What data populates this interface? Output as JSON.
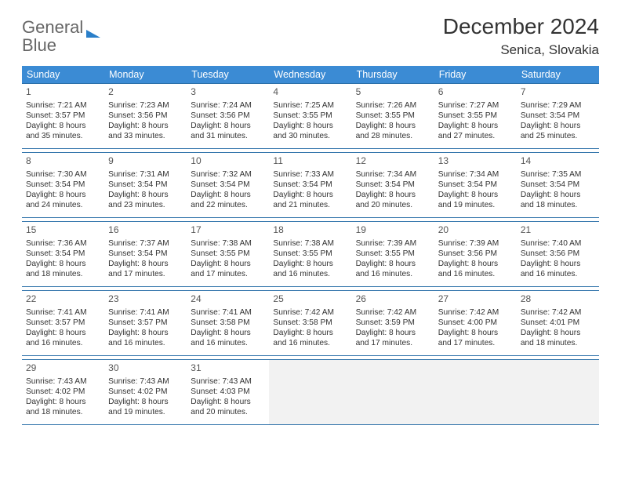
{
  "logo": {
    "text1": "General",
    "text2": "Blue"
  },
  "title": "December 2024",
  "location": "Senica, Slovakia",
  "header_bg": "#3b8bd4",
  "border_color": "#2a6fa8",
  "weekdays": [
    "Sunday",
    "Monday",
    "Tuesday",
    "Wednesday",
    "Thursday",
    "Friday",
    "Saturday"
  ],
  "weeks": [
    [
      {
        "n": "1",
        "sr": "7:21 AM",
        "ss": "3:57 PM",
        "dl": "8 hours and 35 minutes."
      },
      {
        "n": "2",
        "sr": "7:23 AM",
        "ss": "3:56 PM",
        "dl": "8 hours and 33 minutes."
      },
      {
        "n": "3",
        "sr": "7:24 AM",
        "ss": "3:56 PM",
        "dl": "8 hours and 31 minutes."
      },
      {
        "n": "4",
        "sr": "7:25 AM",
        "ss": "3:55 PM",
        "dl": "8 hours and 30 minutes."
      },
      {
        "n": "5",
        "sr": "7:26 AM",
        "ss": "3:55 PM",
        "dl": "8 hours and 28 minutes."
      },
      {
        "n": "6",
        "sr": "7:27 AM",
        "ss": "3:55 PM",
        "dl": "8 hours and 27 minutes."
      },
      {
        "n": "7",
        "sr": "7:29 AM",
        "ss": "3:54 PM",
        "dl": "8 hours and 25 minutes."
      }
    ],
    [
      {
        "n": "8",
        "sr": "7:30 AM",
        "ss": "3:54 PM",
        "dl": "8 hours and 24 minutes."
      },
      {
        "n": "9",
        "sr": "7:31 AM",
        "ss": "3:54 PM",
        "dl": "8 hours and 23 minutes."
      },
      {
        "n": "10",
        "sr": "7:32 AM",
        "ss": "3:54 PM",
        "dl": "8 hours and 22 minutes."
      },
      {
        "n": "11",
        "sr": "7:33 AM",
        "ss": "3:54 PM",
        "dl": "8 hours and 21 minutes."
      },
      {
        "n": "12",
        "sr": "7:34 AM",
        "ss": "3:54 PM",
        "dl": "8 hours and 20 minutes."
      },
      {
        "n": "13",
        "sr": "7:34 AM",
        "ss": "3:54 PM",
        "dl": "8 hours and 19 minutes."
      },
      {
        "n": "14",
        "sr": "7:35 AM",
        "ss": "3:54 PM",
        "dl": "8 hours and 18 minutes."
      }
    ],
    [
      {
        "n": "15",
        "sr": "7:36 AM",
        "ss": "3:54 PM",
        "dl": "8 hours and 18 minutes."
      },
      {
        "n": "16",
        "sr": "7:37 AM",
        "ss": "3:54 PM",
        "dl": "8 hours and 17 minutes."
      },
      {
        "n": "17",
        "sr": "7:38 AM",
        "ss": "3:55 PM",
        "dl": "8 hours and 17 minutes."
      },
      {
        "n": "18",
        "sr": "7:38 AM",
        "ss": "3:55 PM",
        "dl": "8 hours and 16 minutes."
      },
      {
        "n": "19",
        "sr": "7:39 AM",
        "ss": "3:55 PM",
        "dl": "8 hours and 16 minutes."
      },
      {
        "n": "20",
        "sr": "7:39 AM",
        "ss": "3:56 PM",
        "dl": "8 hours and 16 minutes."
      },
      {
        "n": "21",
        "sr": "7:40 AM",
        "ss": "3:56 PM",
        "dl": "8 hours and 16 minutes."
      }
    ],
    [
      {
        "n": "22",
        "sr": "7:41 AM",
        "ss": "3:57 PM",
        "dl": "8 hours and 16 minutes."
      },
      {
        "n": "23",
        "sr": "7:41 AM",
        "ss": "3:57 PM",
        "dl": "8 hours and 16 minutes."
      },
      {
        "n": "24",
        "sr": "7:41 AM",
        "ss": "3:58 PM",
        "dl": "8 hours and 16 minutes."
      },
      {
        "n": "25",
        "sr": "7:42 AM",
        "ss": "3:58 PM",
        "dl": "8 hours and 16 minutes."
      },
      {
        "n": "26",
        "sr": "7:42 AM",
        "ss": "3:59 PM",
        "dl": "8 hours and 17 minutes."
      },
      {
        "n": "27",
        "sr": "7:42 AM",
        "ss": "4:00 PM",
        "dl": "8 hours and 17 minutes."
      },
      {
        "n": "28",
        "sr": "7:42 AM",
        "ss": "4:01 PM",
        "dl": "8 hours and 18 minutes."
      }
    ],
    [
      {
        "n": "29",
        "sr": "7:43 AM",
        "ss": "4:02 PM",
        "dl": "8 hours and 18 minutes."
      },
      {
        "n": "30",
        "sr": "7:43 AM",
        "ss": "4:02 PM",
        "dl": "8 hours and 19 minutes."
      },
      {
        "n": "31",
        "sr": "7:43 AM",
        "ss": "4:03 PM",
        "dl": "8 hours and 20 minutes."
      },
      null,
      null,
      null,
      null
    ]
  ],
  "labels": {
    "sunrise": "Sunrise:",
    "sunset": "Sunset:",
    "daylight": "Daylight:"
  }
}
